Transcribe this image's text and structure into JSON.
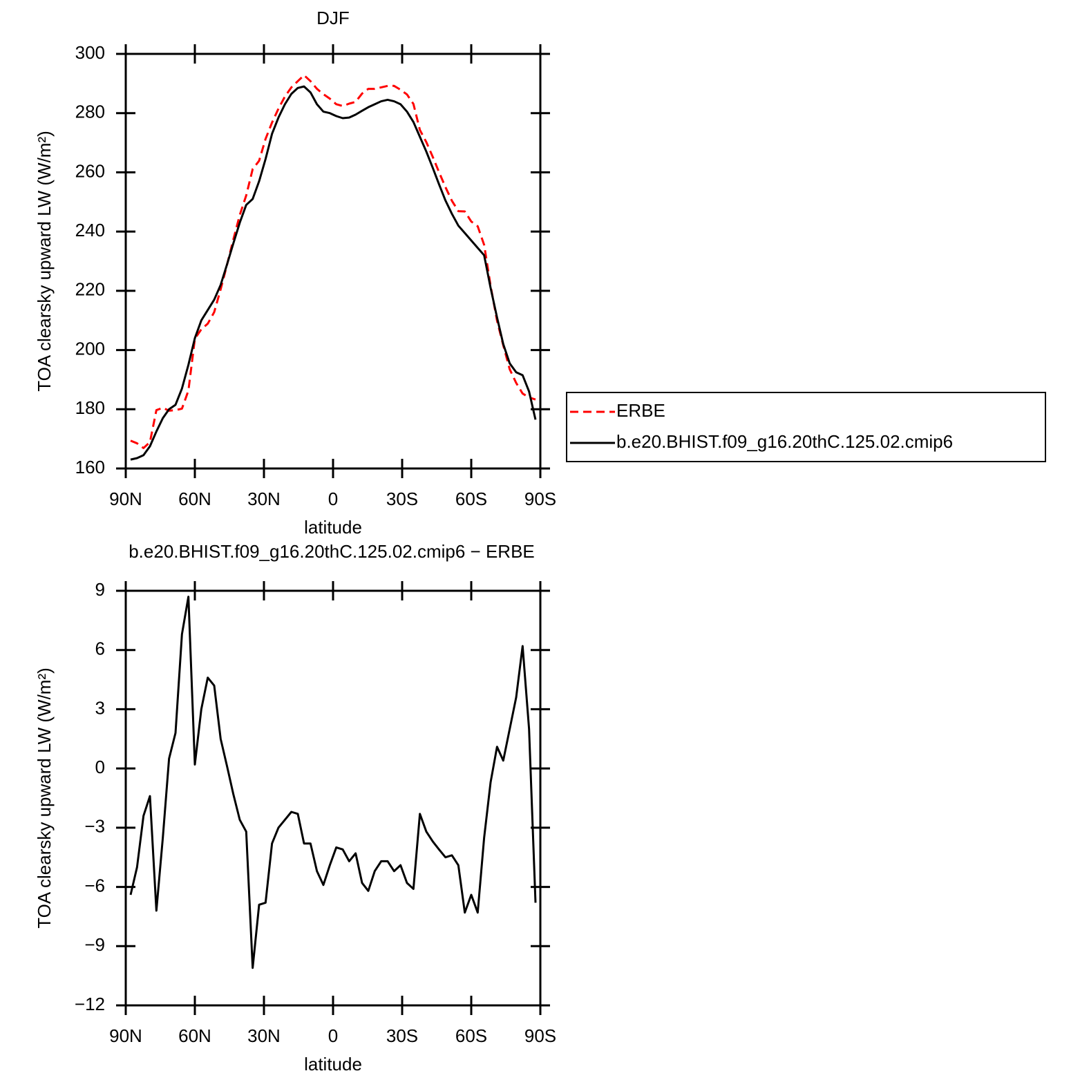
{
  "chart_data": [
    {
      "type": "line",
      "title": "DJF",
      "xlabel": "latitude",
      "ylabel": "TOA clearsky upward LW (W/m²)",
      "x": [
        87.9,
        85.1,
        82.3,
        79.5,
        76.7,
        73.9,
        71.2,
        68.4,
        65.6,
        62.8,
        60.0,
        57.2,
        54.4,
        51.6,
        48.8,
        46.0,
        43.3,
        40.5,
        37.7,
        34.9,
        32.1,
        29.3,
        26.5,
        23.7,
        20.9,
        18.1,
        15.3,
        12.6,
        9.8,
        7.0,
        4.2,
        1.4,
        -1.4,
        -4.2,
        -7.0,
        -9.8,
        -12.6,
        -15.3,
        -18.1,
        -20.9,
        -23.7,
        -26.5,
        -29.3,
        -32.1,
        -34.9,
        -37.7,
        -40.5,
        -43.3,
        -46.0,
        -48.8,
        -51.6,
        -54.4,
        -57.2,
        -60.0,
        -62.8,
        -65.6,
        -68.4,
        -71.2,
        -73.9,
        -76.7,
        -79.5,
        -82.3,
        -85.1,
        -87.9
      ],
      "series": [
        {
          "name": "ERBE",
          "color": "#ff0000",
          "dash": true,
          "values": [
            169.4,
            168.5,
            166.9,
            168.9,
            179.7,
            180.5,
            179.5,
            179.7,
            180.2,
            186.3,
            203.8,
            207.0,
            208.9,
            212.8,
            220.5,
            228.9,
            237.3,
            245.6,
            252.2,
            261.1,
            263.9,
            271.3,
            276.8,
            281.5,
            285.6,
            288.7,
            290.8,
            292.8,
            290.8,
            288.2,
            286.4,
            284.9,
            283.0,
            282.4,
            283.2,
            283.8,
            286.6,
            288.2,
            288.2,
            288.7,
            289.2,
            289.2,
            287.9,
            286.3,
            283.1,
            274.3,
            270.2,
            265.2,
            260.1,
            255.0,
            250.4,
            246.9,
            246.8,
            243.4,
            241.8,
            235.5,
            221.7,
            209.9,
            201.6,
            193.5,
            188.9,
            185.3,
            184.0,
            183.3
          ]
        },
        {
          "name": "b.e20.BHIST.f09_g16.20thC.125.02.cmip6",
          "color": "#000000",
          "dash": false,
          "values": [
            163,
            163.5,
            164.5,
            167.5,
            172.5,
            177,
            180,
            181.5,
            187,
            195,
            204,
            210,
            213.5,
            217,
            222,
            229,
            236,
            243,
            249,
            251,
            257,
            264.5,
            273,
            278.5,
            283,
            286.5,
            288.5,
            289,
            287,
            283,
            280.5,
            280,
            279,
            278.3,
            278.5,
            279.5,
            280.8,
            282,
            283,
            284,
            284.5,
            284,
            283,
            280.5,
            277,
            272,
            267,
            261.5,
            256,
            250.5,
            246,
            242,
            239.5,
            237,
            234.5,
            232,
            221,
            211,
            202,
            195.5,
            192.5,
            191.5,
            186,
            176.5
          ]
        }
      ],
      "xlim": [
        90,
        -90
      ],
      "xticks": [
        {
          "value": 90,
          "label": "90N"
        },
        {
          "value": 60,
          "label": "60N"
        },
        {
          "value": 30,
          "label": "30N"
        },
        0,
        {
          "value": -30,
          "label": "30S"
        },
        {
          "value": -60,
          "label": "60S"
        },
        {
          "value": -90,
          "label": "90S"
        }
      ],
      "ylim": [
        160,
        300
      ],
      "yticks": [
        160,
        180,
        200,
        220,
        240,
        260,
        280,
        300
      ],
      "legend": "right"
    },
    {
      "type": "line",
      "title": "b.e20.BHIST.f09_g16.20thC.125.02.cmip6 − ERBE",
      "xlabel": "latitude",
      "ylabel": "TOA clearsky upward LW (W/m²)",
      "x": [
        87.9,
        85.1,
        82.3,
        79.5,
        76.7,
        73.9,
        71.2,
        68.4,
        65.6,
        62.8,
        60.0,
        57.2,
        54.4,
        51.6,
        48.8,
        46.0,
        43.3,
        40.5,
        37.7,
        34.9,
        32.1,
        29.3,
        26.5,
        23.7,
        20.9,
        18.1,
        15.3,
        12.6,
        9.8,
        7.0,
        4.2,
        1.4,
        -1.4,
        -4.2,
        -7.0,
        -9.8,
        -12.6,
        -15.3,
        -18.1,
        -20.9,
        -23.7,
        -26.5,
        -29.3,
        -32.1,
        -34.9,
        -37.7,
        -40.5,
        -43.3,
        -46.0,
        -48.8,
        -51.6,
        -54.4,
        -57.2,
        -60.0,
        -62.8,
        -65.6,
        -68.4,
        -71.2,
        -73.9,
        -76.7,
        -79.5,
        -82.3,
        -85.1,
        -87.9
      ],
      "color": "#000000",
      "values": [
        -6.4,
        -5.0,
        -2.4,
        -1.4,
        -7.2,
        -3.5,
        0.5,
        1.8,
        6.8,
        8.7,
        0.2,
        3.0,
        4.6,
        4.2,
        1.5,
        0.1,
        -1.3,
        -2.6,
        -3.2,
        -10.1,
        -6.9,
        -6.8,
        -3.8,
        -3.0,
        -2.6,
        -2.2,
        -2.3,
        -3.8,
        -3.8,
        -5.2,
        -5.9,
        -4.9,
        -4.0,
        -4.1,
        -4.7,
        -4.3,
        -5.8,
        -6.2,
        -5.2,
        -4.7,
        -4.7,
        -5.2,
        -4.9,
        -5.8,
        -6.1,
        -2.3,
        -3.2,
        -3.7,
        -4.1,
        -4.5,
        -4.4,
        -4.9,
        -7.3,
        -6.4,
        -7.3,
        -3.5,
        -0.7,
        1.1,
        0.4,
        2.0,
        3.6,
        6.2,
        2.0,
        -6.8
      ],
      "xlim": [
        90,
        -90
      ],
      "xticks": [
        {
          "value": 90,
          "label": "90N"
        },
        {
          "value": 60,
          "label": "60N"
        },
        {
          "value": 30,
          "label": "30N"
        },
        0,
        {
          "value": -30,
          "label": "30S"
        },
        {
          "value": -60,
          "label": "60S"
        },
        {
          "value": -90,
          "label": "90S"
        }
      ],
      "ylim": [
        -12,
        9
      ],
      "yticks": [
        {
          "value": -12,
          "label": "−12"
        },
        {
          "value": -9,
          "label": "−9"
        },
        {
          "value": -6,
          "label": "−6"
        },
        {
          "value": -3,
          "label": "−3"
        },
        0,
        3,
        6,
        9
      ]
    }
  ]
}
